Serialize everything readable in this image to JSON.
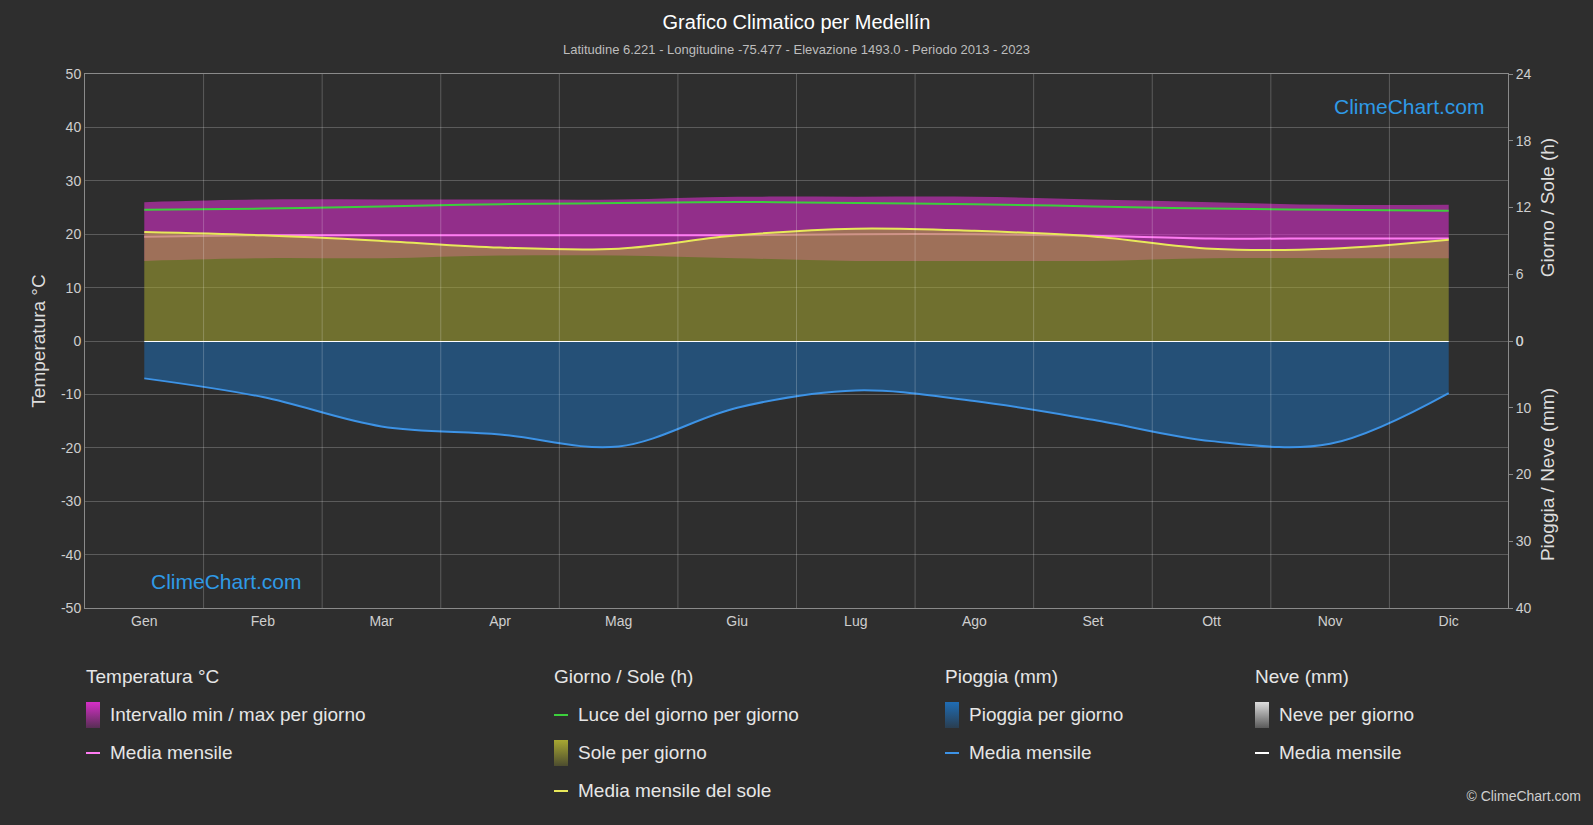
{
  "chart_data": {
    "type": "line",
    "title": "Grafico Climatico per Medellín",
    "subtitle": "Latitudine 6.221 - Longitudine -75.477 - Elevazione 1493.0 - Periodo 2013 - 2023",
    "watermark": "ClimeChart.com",
    "copyright": "© ClimeChart.com",
    "categories": [
      "Gen",
      "Feb",
      "Mar",
      "Apr",
      "Mag",
      "Giu",
      "Lug",
      "Ago",
      "Set",
      "Ott",
      "Nov",
      "Dic"
    ],
    "ylabel": "Temperatura °C",
    "ylim": [
      -50,
      50
    ],
    "yticks": [
      -50,
      -40,
      -30,
      -20,
      -10,
      0,
      10,
      20,
      30,
      40,
      50
    ],
    "y2label": "Giorno / Sole (h)",
    "y2lim": [
      0,
      24
    ],
    "y2ticks": [
      0,
      6,
      12,
      18,
      24
    ],
    "y3label": "Pioggia / Neve (mm)",
    "y3lim": [
      0,
      40
    ],
    "y3ticks": [
      0,
      10,
      20,
      30,
      40
    ],
    "grid": true,
    "legend_groups": [
      {
        "title": "Temperatura °C",
        "series": [
          {
            "name": "Intervallo min / max per giorno",
            "type": "range",
            "axis": "y",
            "color": "#d62fc8",
            "low": [
              15.0,
              15.5,
              15.5,
              16.0,
              16.0,
              15.5,
              15.0,
              15.0,
              15.0,
              15.5,
              15.5,
              15.5
            ],
            "high": [
              26.0,
              26.5,
              26.5,
              26.5,
              26.5,
              27.0,
              27.0,
              27.0,
              26.5,
              26.0,
              25.5,
              25.5
            ]
          },
          {
            "name": "Media mensile",
            "type": "line",
            "axis": "y",
            "color": "#ff7cf2",
            "values": [
              19.5,
              19.8,
              19.8,
              19.8,
              19.8,
              19.8,
              20.0,
              20.0,
              19.7,
              19.2,
              19.2,
              19.2
            ]
          }
        ]
      },
      {
        "title": "Giorno / Sole (h)",
        "series": [
          {
            "name": "Luce del giorno per giorno",
            "type": "line",
            "axis": "y2",
            "color": "#3ccf3c",
            "values": [
              11.8,
              11.9,
              12.1,
              12.3,
              12.4,
              12.5,
              12.4,
              12.3,
              12.1,
              11.9,
              11.8,
              11.7
            ]
          },
          {
            "name": "Sole per giorno",
            "type": "area",
            "axis": "y2",
            "color": "#a8a832",
            "values": [
              9.8,
              9.5,
              9.0,
              8.4,
              8.3,
              9.5,
              10.1,
              9.9,
              9.4,
              8.3,
              8.3,
              9.1
            ]
          },
          {
            "name": "Media mensile del sole",
            "type": "line",
            "axis": "y2",
            "color": "#e8e85a",
            "values": [
              9.8,
              9.5,
              9.0,
              8.4,
              8.3,
              9.5,
              10.1,
              9.9,
              9.4,
              8.3,
              8.3,
              9.1
            ]
          }
        ]
      },
      {
        "title": "Pioggia (mm)",
        "series": [
          {
            "name": "Pioggia per giorno",
            "type": "area",
            "axis": "y3",
            "color": "#1f6db5",
            "values": [
              5.6,
              8.4,
              12.8,
              14.0,
              15.8,
              10.0,
              7.4,
              9.0,
              11.8,
              15.0,
              15.4,
              7.8
            ]
          },
          {
            "name": "Media mensile",
            "type": "line",
            "axis": "y3",
            "color": "#3d93e6",
            "values": [
              5.6,
              8.4,
              12.8,
              14.0,
              15.8,
              10.0,
              7.4,
              9.0,
              11.8,
              15.0,
              15.4,
              7.8
            ]
          }
        ]
      },
      {
        "title": "Neve (mm)",
        "series": [
          {
            "name": "Neve per giorno",
            "type": "area",
            "axis": "y3",
            "color": "#dddddd",
            "values": [
              0,
              0,
              0,
              0,
              0,
              0,
              0,
              0,
              0,
              0,
              0,
              0
            ]
          },
          {
            "name": "Media mensile",
            "type": "line",
            "axis": "y3",
            "color": "#ffffff",
            "values": [
              0,
              0,
              0,
              0,
              0,
              0,
              0,
              0,
              0,
              0,
              0,
              0
            ]
          }
        ]
      }
    ]
  }
}
